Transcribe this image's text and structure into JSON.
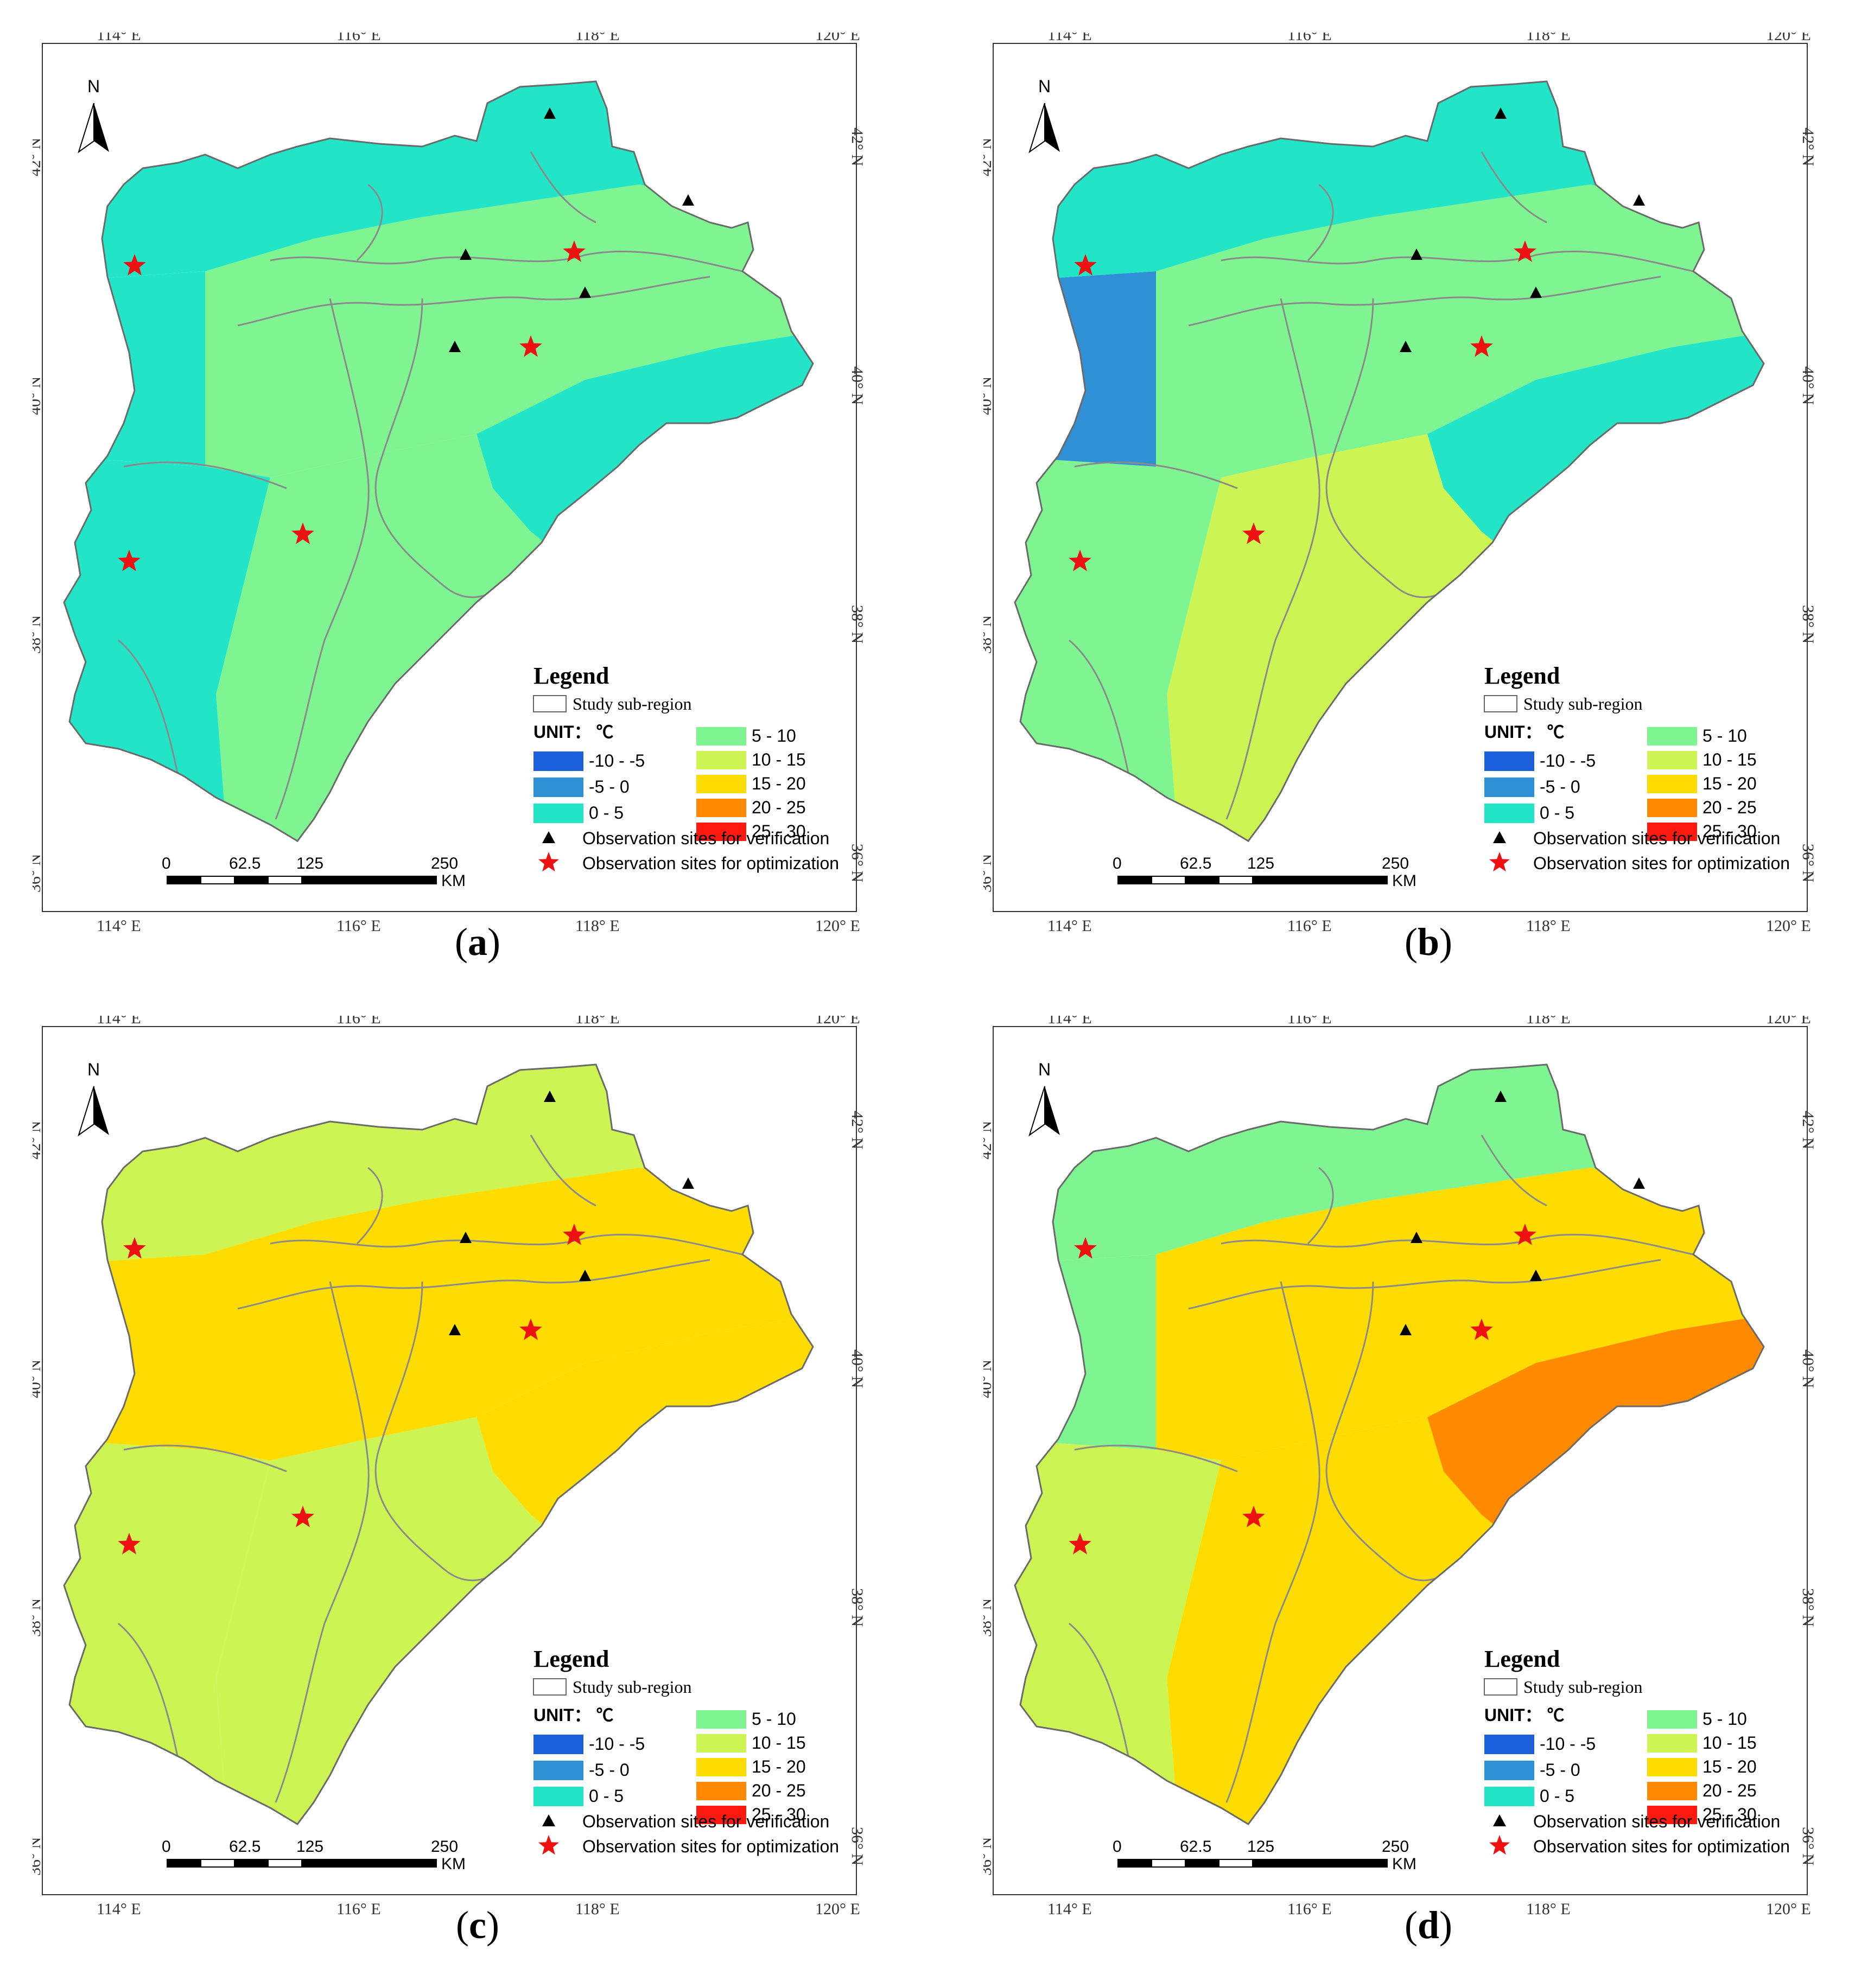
{
  "figure": {
    "panels": [
      {
        "id": "a",
        "label": "a",
        "class_by_zone": {
          "north": "0 - 5",
          "central": "5 - 10",
          "coast": "0 - 5",
          "south": "5 - 10",
          "southwest": "0 - 5",
          "west": "0 - 5"
        }
      },
      {
        "id": "b",
        "label": "b",
        "class_by_zone": {
          "north": "0 - 5",
          "central": "5 - 10",
          "coast": "0 - 5",
          "south": "10 - 15",
          "southwest": "5 - 10",
          "west": "-5 - 0"
        }
      },
      {
        "id": "c",
        "label": "c",
        "class_by_zone": {
          "north": "10 - 15",
          "central": "15 - 20",
          "coast": "15 - 20",
          "south": "10 - 15",
          "southwest": "10 - 15",
          "west": "15 - 20"
        }
      },
      {
        "id": "d",
        "label": "d",
        "class_by_zone": {
          "north": "5 - 10",
          "central": "15 - 20",
          "coast": "20 - 25",
          "south": "15 - 20",
          "southwest": "10 - 15",
          "west": "5 - 10"
        }
      }
    ],
    "top_axis_labels": [
      "114° E",
      "116° E",
      "118° E",
      "120° E"
    ],
    "bottom_axis_labels": [
      "114° E",
      "116° E",
      "118° E",
      "120° E"
    ],
    "lat_labels": [
      "42° N",
      "40° N",
      "38° N",
      "36° N"
    ],
    "north_arrow": "N",
    "legend": {
      "title": "Legend",
      "study_region": "Study sub-region",
      "unit_label": "UNIT： ℃",
      "classes": [
        {
          "label": "-10 - -5",
          "color": "#1a5fdc"
        },
        {
          "label": "-5  - 0",
          "color": "#3090d6"
        },
        {
          "label": " 0  - 5",
          "color": "#22e5c8"
        },
        {
          "label": "5 - 10",
          "color": "#7ef590"
        },
        {
          "label": "10  - 15",
          "color": "#ccf554"
        },
        {
          "label": "15  - 20",
          "color": "#ffdc00"
        },
        {
          "label": "20  - 25",
          "color": "#ff8a00"
        },
        {
          "label": "25  - 30",
          "color": "#ff1a10"
        }
      ],
      "verification_label": "Observation sites for verification",
      "optimization_label": "Observation sites for optimization"
    },
    "scale_bar": {
      "ticks": [
        "0",
        "62.5",
        "125",
        "250"
      ],
      "unit": "KM"
    },
    "class_colors": {
      "-10 - -5": "#1a5fdc",
      "-5 - 0": "#3090d6",
      "0 - 5": "#22e5c8",
      "5 - 10": "#7ef590",
      "10 - 15": "#ccf554",
      "15 - 20": "#ffdc00",
      "20 - 25": "#ff8a00",
      "25 - 30": "#ff1a10"
    }
  }
}
